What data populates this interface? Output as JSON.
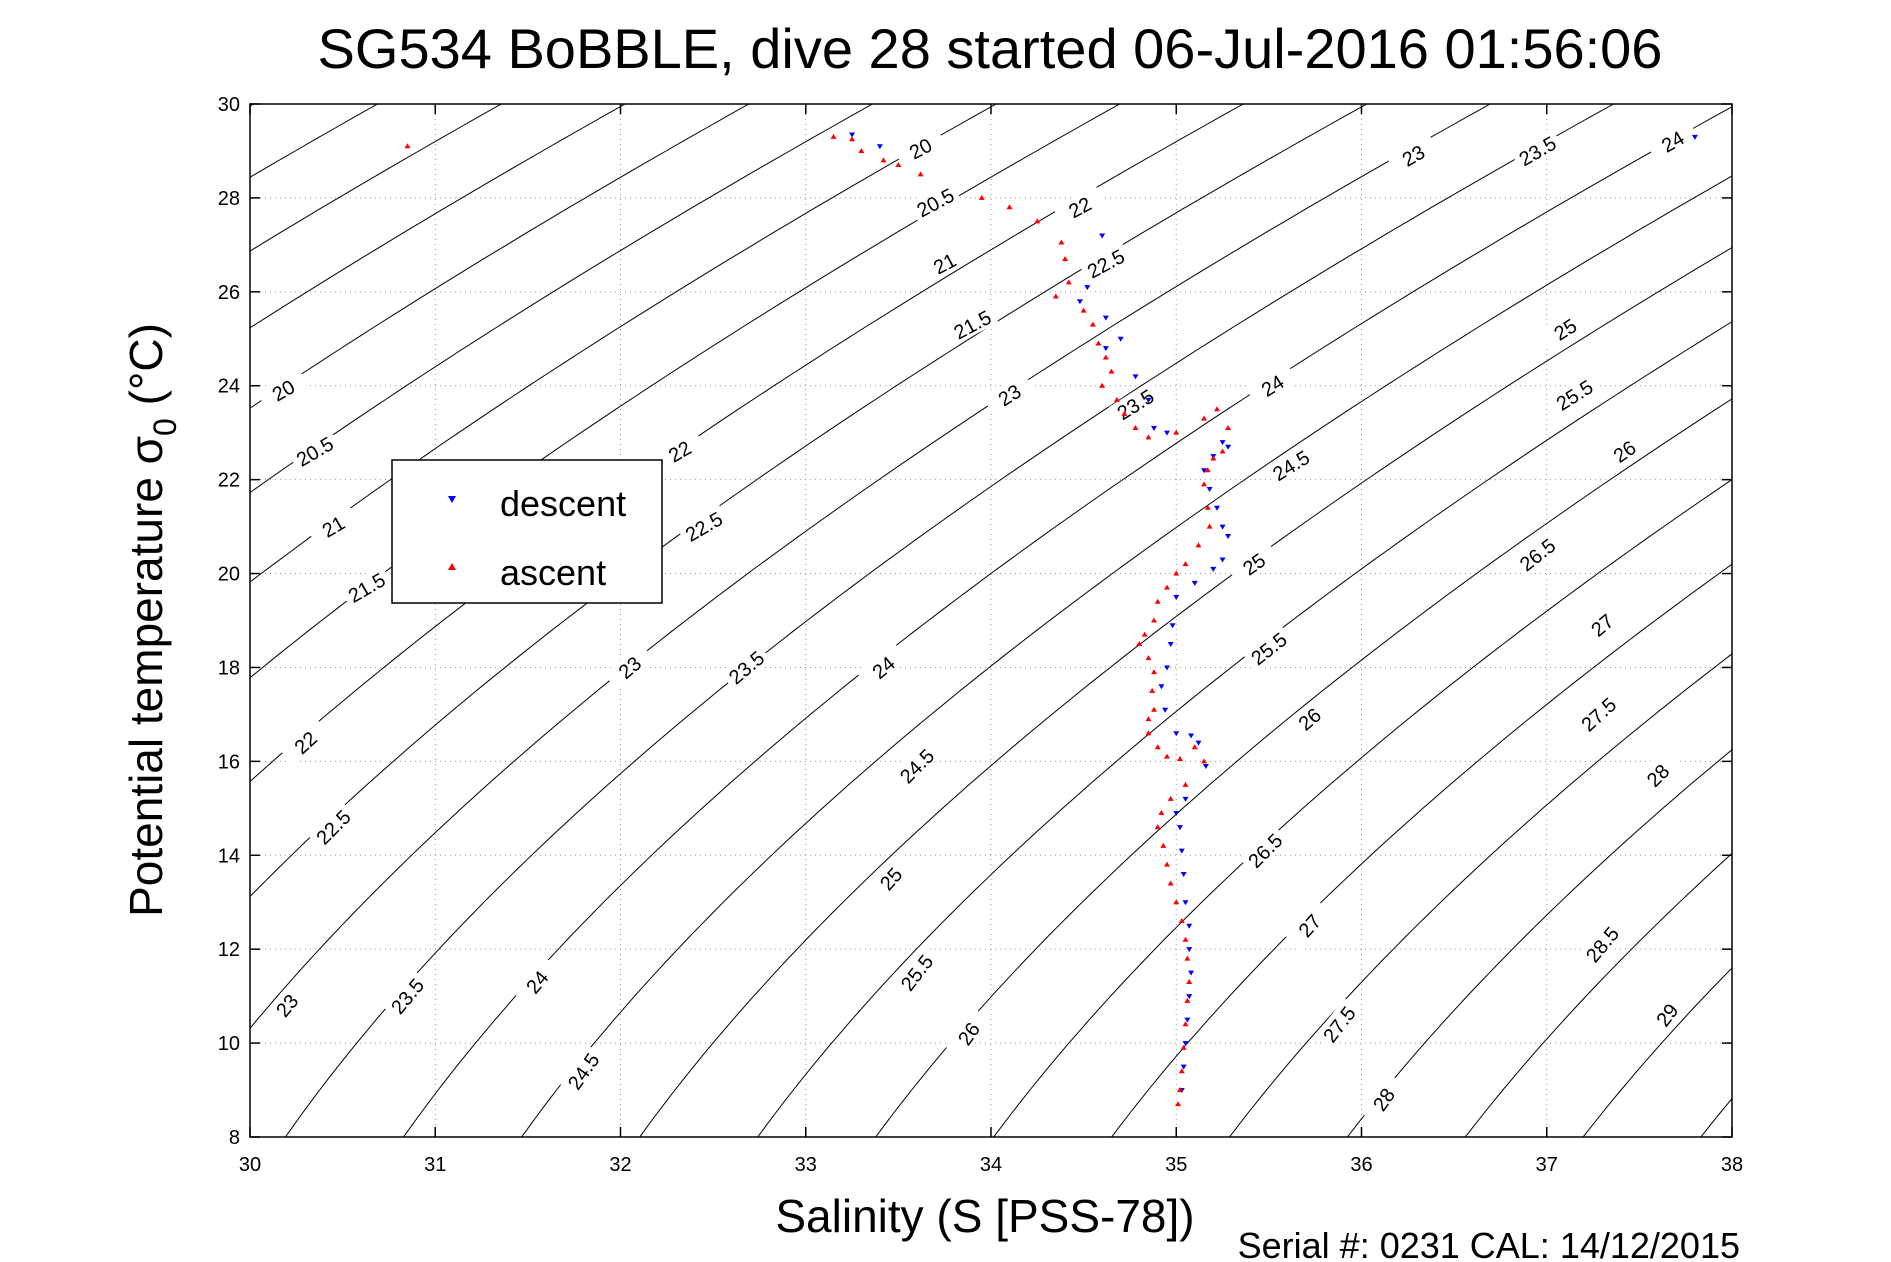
{
  "chart_data": {
    "type": "scatter",
    "title": "SG534 BoBBLE, dive 28 started 06-Jul-2016 01:56:06",
    "xlabel": "Salinity (S [PSS-78])",
    "ylabel": "Potential temperature σ",
    "ylabel_sub": "0",
    "ylabel_unit": " (°C)",
    "xlim": [
      30,
      38
    ],
    "ylim": [
      8,
      30
    ],
    "xticks": [
      30,
      31,
      32,
      33,
      34,
      35,
      36,
      37,
      38
    ],
    "yticks": [
      8,
      10,
      12,
      14,
      16,
      18,
      20,
      22,
      24,
      26,
      28,
      30
    ],
    "grid": true,
    "footer": "Serial #: 0231  CAL: 14/12/2015",
    "legend": {
      "placement": "middle-left",
      "entries": [
        {
          "name": "descent",
          "color": "#0000ff",
          "marker": "triangle-down"
        },
        {
          "name": "ascent",
          "color": "#ff0000",
          "marker": "triangle-up"
        }
      ]
    },
    "contours": {
      "levels": [
        20,
        20.5,
        21,
        21.5,
        22,
        22.5,
        23,
        23.5,
        24,
        24.5,
        25,
        25.5,
        26,
        26.5,
        27,
        27.5,
        28,
        28.5,
        29
      ],
      "labels": [
        {
          "text": "20",
          "s": 33.62,
          "t": 29.05,
          "rot": -28
        },
        {
          "text": "20.5",
          "s": 33.7,
          "t": 27.9,
          "rot": -28
        },
        {
          "text": "21",
          "s": 33.75,
          "t": 26.6,
          "rot": -28
        },
        {
          "text": "21.5",
          "s": 33.9,
          "t": 25.3,
          "rot": -28
        },
        {
          "text": "22",
          "s": 34.48,
          "t": 27.8,
          "rot": -28
        },
        {
          "text": "22.5",
          "s": 34.62,
          "t": 26.6,
          "rot": -28
        },
        {
          "text": "23",
          "s": 36.28,
          "t": 28.9,
          "rot": -30
        },
        {
          "text": "23.5",
          "s": 36.95,
          "t": 29.0,
          "rot": -30
        },
        {
          "text": "24",
          "s": 37.68,
          "t": 29.2,
          "rot": -30
        },
        {
          "text": "20",
          "s": 30.18,
          "t": 23.9,
          "rot": -30
        },
        {
          "text": "20.5",
          "s": 30.35,
          "t": 22.6,
          "rot": -30
        },
        {
          "text": "21",
          "s": 30.45,
          "t": 21.0,
          "rot": -30
        },
        {
          "text": "21.5",
          "s": 30.63,
          "t": 19.7,
          "rot": -30
        },
        {
          "text": "22",
          "s": 32.32,
          "t": 22.6,
          "rot": -30
        },
        {
          "text": "22.5",
          "s": 32.45,
          "t": 21.0,
          "rot": -30
        },
        {
          "text": "23",
          "s": 34.1,
          "t": 23.8,
          "rot": -32
        },
        {
          "text": "23.5",
          "s": 34.78,
          "t": 23.6,
          "rot": -32
        },
        {
          "text": "24",
          "s": 35.52,
          "t": 24.0,
          "rot": -32
        },
        {
          "text": "24.5",
          "s": 35.62,
          "t": 22.3,
          "rot": -32
        },
        {
          "text": "25",
          "s": 35.42,
          "t": 20.2,
          "rot": -35
        },
        {
          "text": "25.5",
          "s": 35.5,
          "t": 18.4,
          "rot": -38
        },
        {
          "text": "26",
          "s": 35.72,
          "t": 16.9,
          "rot": -40
        },
        {
          "text": "26.5",
          "s": 35.48,
          "t": 14.1,
          "rot": -45
        },
        {
          "text": "27",
          "s": 35.72,
          "t": 12.5,
          "rot": -48
        },
        {
          "text": "27.5",
          "s": 35.88,
          "t": 10.4,
          "rot": -52
        },
        {
          "text": "28",
          "s": 36.12,
          "t": 8.8,
          "rot": -55
        },
        {
          "text": "22",
          "s": 30.3,
          "t": 16.4,
          "rot": -42
        },
        {
          "text": "22.5",
          "s": 30.45,
          "t": 14.6,
          "rot": -45
        },
        {
          "text": "23",
          "s": 30.2,
          "t": 10.8,
          "rot": -50
        },
        {
          "text": "23.5",
          "s": 30.85,
          "t": 11.0,
          "rot": -50
        },
        {
          "text": "24",
          "s": 31.55,
          "t": 11.3,
          "rot": -50
        },
        {
          "text": "24.5",
          "s": 31.8,
          "t": 9.4,
          "rot": -55
        },
        {
          "text": "23",
          "s": 32.05,
          "t": 18.0,
          "rot": -40
        },
        {
          "text": "23.5",
          "s": 32.68,
          "t": 18.0,
          "rot": -40
        },
        {
          "text": "24",
          "s": 33.42,
          "t": 18.0,
          "rot": -40
        },
        {
          "text": "24.5",
          "s": 33.6,
          "t": 15.9,
          "rot": -45
        },
        {
          "text": "25",
          "s": 33.46,
          "t": 13.5,
          "rot": -48
        },
        {
          "text": "25.5",
          "s": 33.6,
          "t": 11.5,
          "rot": -52
        },
        {
          "text": "26",
          "s": 33.88,
          "t": 10.2,
          "rot": -55
        },
        {
          "text": "25",
          "s": 37.1,
          "t": 25.2,
          "rot": -32
        },
        {
          "text": "25.5",
          "s": 37.15,
          "t": 23.8,
          "rot": -32
        },
        {
          "text": "26",
          "s": 37.42,
          "t": 22.6,
          "rot": -35
        },
        {
          "text": "26.5",
          "s": 36.95,
          "t": 20.4,
          "rot": -38
        },
        {
          "text": "27",
          "s": 37.3,
          "t": 18.9,
          "rot": -40
        },
        {
          "text": "27.5",
          "s": 37.28,
          "t": 17.0,
          "rot": -42
        },
        {
          "text": "28",
          "s": 37.6,
          "t": 15.7,
          "rot": -45
        },
        {
          "text": "28.5",
          "s": 37.3,
          "t": 12.1,
          "rot": -50
        },
        {
          "text": "29",
          "s": 37.65,
          "t": 10.6,
          "rot": -52
        }
      ]
    },
    "series": [
      {
        "name": "descent",
        "points": [
          [
            37.8,
            29.3
          ],
          [
            33.25,
            29.35
          ],
          [
            33.4,
            29.1
          ],
          [
            34.6,
            27.2
          ],
          [
            34.52,
            26.1
          ],
          [
            34.48,
            25.8
          ],
          [
            34.62,
            25.45
          ],
          [
            34.7,
            25.0
          ],
          [
            34.62,
            24.8
          ],
          [
            34.78,
            24.2
          ],
          [
            34.85,
            23.7
          ],
          [
            34.95,
            23.0
          ],
          [
            34.88,
            23.1
          ],
          [
            35.25,
            22.8
          ],
          [
            35.28,
            22.7
          ],
          [
            35.2,
            22.5
          ],
          [
            35.15,
            22.2
          ],
          [
            35.18,
            21.8
          ],
          [
            35.22,
            21.4
          ],
          [
            35.25,
            21.0
          ],
          [
            35.28,
            20.8
          ],
          [
            35.25,
            20.3
          ],
          [
            35.2,
            20.1
          ],
          [
            35.1,
            19.8
          ],
          [
            35.0,
            19.5
          ],
          [
            34.98,
            18.9
          ],
          [
            34.97,
            18.5
          ],
          [
            34.95,
            18.0
          ],
          [
            34.92,
            17.6
          ],
          [
            34.94,
            17.1
          ],
          [
            35.0,
            16.6
          ],
          [
            35.08,
            16.55
          ],
          [
            35.12,
            16.4
          ],
          [
            35.16,
            15.9
          ],
          [
            35.05,
            15.2
          ],
          [
            35.0,
            14.9
          ],
          [
            35.02,
            14.6
          ],
          [
            35.03,
            14.1
          ],
          [
            35.04,
            13.6
          ],
          [
            35.05,
            13.0
          ],
          [
            35.07,
            12.5
          ],
          [
            35.07,
            12.0
          ],
          [
            35.08,
            11.5
          ],
          [
            35.07,
            11.0
          ],
          [
            35.06,
            10.5
          ],
          [
            35.05,
            10.0
          ],
          [
            35.04,
            9.5
          ],
          [
            35.03,
            9.0
          ]
        ]
      },
      {
        "name": "ascent",
        "points": [
          [
            30.85,
            29.1
          ],
          [
            33.15,
            29.3
          ],
          [
            33.25,
            29.25
          ],
          [
            33.3,
            29.0
          ],
          [
            33.42,
            28.8
          ],
          [
            33.5,
            28.7
          ],
          [
            33.62,
            28.5
          ],
          [
            33.95,
            28.0
          ],
          [
            34.1,
            27.8
          ],
          [
            34.25,
            27.5
          ],
          [
            34.38,
            27.05
          ],
          [
            34.4,
            26.7
          ],
          [
            34.42,
            26.2
          ],
          [
            34.35,
            25.9
          ],
          [
            34.5,
            25.6
          ],
          [
            34.55,
            25.3
          ],
          [
            34.58,
            24.9
          ],
          [
            34.62,
            24.6
          ],
          [
            34.65,
            24.3
          ],
          [
            34.6,
            24.0
          ],
          [
            34.68,
            23.7
          ],
          [
            34.72,
            23.4
          ],
          [
            34.78,
            23.1
          ],
          [
            34.85,
            22.9
          ],
          [
            35.0,
            23.0
          ],
          [
            35.15,
            23.3
          ],
          [
            35.22,
            23.5
          ],
          [
            35.28,
            23.1
          ],
          [
            35.25,
            22.6
          ],
          [
            35.2,
            22.45
          ],
          [
            35.17,
            22.2
          ],
          [
            35.15,
            21.9
          ],
          [
            35.17,
            21.4
          ],
          [
            35.18,
            21.0
          ],
          [
            35.12,
            20.6
          ],
          [
            35.05,
            20.2
          ],
          [
            35.0,
            20.0
          ],
          [
            34.95,
            19.7
          ],
          [
            34.9,
            19.4
          ],
          [
            34.88,
            19.0
          ],
          [
            34.83,
            18.7
          ],
          [
            34.8,
            18.5
          ],
          [
            34.85,
            18.2
          ],
          [
            34.88,
            17.9
          ],
          [
            34.87,
            17.5
          ],
          [
            34.88,
            17.1
          ],
          [
            34.85,
            16.9
          ],
          [
            34.85,
            16.6
          ],
          [
            34.9,
            16.3
          ],
          [
            34.95,
            16.1
          ],
          [
            35.02,
            16.05
          ],
          [
            35.1,
            16.3
          ],
          [
            35.15,
            16.0
          ],
          [
            35.05,
            15.5
          ],
          [
            34.97,
            15.2
          ],
          [
            34.92,
            14.9
          ],
          [
            34.9,
            14.6
          ],
          [
            34.93,
            14.2
          ],
          [
            34.95,
            13.8
          ],
          [
            34.97,
            13.4
          ],
          [
            35.0,
            13.0
          ],
          [
            35.03,
            12.6
          ],
          [
            35.05,
            12.2
          ],
          [
            35.06,
            11.8
          ],
          [
            35.07,
            11.3
          ],
          [
            35.06,
            10.9
          ],
          [
            35.05,
            10.4
          ],
          [
            35.04,
            9.9
          ],
          [
            35.03,
            9.4
          ],
          [
            35.02,
            9.0
          ],
          [
            35.01,
            8.7
          ]
        ]
      }
    ]
  }
}
